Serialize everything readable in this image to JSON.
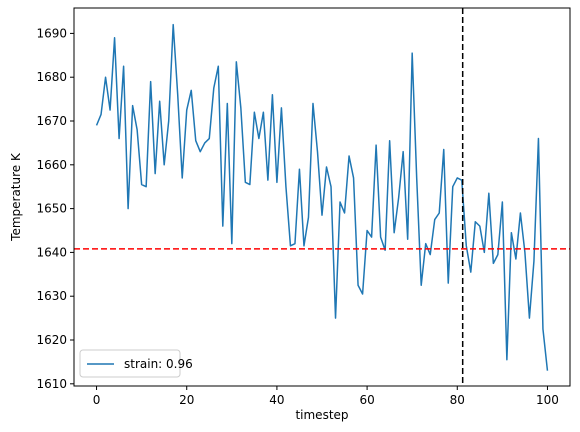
{
  "chart_data": {
    "type": "line",
    "title": "",
    "xlabel": "timestep",
    "ylabel": "Temperature K",
    "xlim": [
      -5,
      105
    ],
    "ylim": [
      1609.5,
      1695.8
    ],
    "xticks": [
      0,
      20,
      40,
      60,
      80,
      100
    ],
    "yticks": [
      1610,
      1620,
      1630,
      1640,
      1650,
      1660,
      1670,
      1680,
      1690
    ],
    "grid": false,
    "legend_placement": "lower-left",
    "series": [
      {
        "name": "strain: 0.96",
        "color": "#1f77b4",
        "x": [
          0,
          1,
          2,
          3,
          4,
          5,
          6,
          7,
          8,
          9,
          10,
          11,
          12,
          13,
          14,
          15,
          16,
          17,
          18,
          19,
          20,
          21,
          22,
          23,
          24,
          25,
          26,
          27,
          28,
          29,
          30,
          31,
          32,
          33,
          34,
          35,
          36,
          37,
          38,
          39,
          40,
          41,
          42,
          43,
          44,
          45,
          46,
          47,
          48,
          49,
          50,
          51,
          52,
          53,
          54,
          55,
          56,
          57,
          58,
          59,
          60,
          61,
          62,
          63,
          64,
          65,
          66,
          67,
          68,
          69,
          70,
          71,
          72,
          73,
          74,
          75,
          76,
          77,
          78,
          79,
          80,
          81,
          82,
          83,
          84,
          85,
          86,
          87,
          88,
          89,
          90,
          91,
          92,
          93,
          94,
          95,
          96,
          97,
          98,
          99,
          100
        ],
        "values": [
          1669,
          1671.5,
          1680,
          1672.5,
          1689,
          1666,
          1682.5,
          1650,
          1673.5,
          1668,
          1655.5,
          1655,
          1679,
          1658,
          1674.5,
          1660,
          1670,
          1692,
          1676,
          1657,
          1672.5,
          1677,
          1665.5,
          1663,
          1665,
          1666,
          1677.5,
          1682.5,
          1646,
          1674,
          1642,
          1683.5,
          1673,
          1656,
          1655.5,
          1672,
          1666,
          1672,
          1656.5,
          1676,
          1656,
          1673,
          1655,
          1641.5,
          1642,
          1659,
          1641.5,
          1648,
          1674,
          1663,
          1648.5,
          1659.5,
          1655,
          1625,
          1651.5,
          1649,
          1662,
          1657,
          1632.5,
          1630.5,
          1645,
          1643.5,
          1664.5,
          1643.5,
          1640.5,
          1665.5,
          1644.5,
          1652.5,
          1663,
          1643,
          1685.5,
          1657,
          1632.5,
          1642,
          1639.5,
          1647.5,
          1649,
          1663.5,
          1633,
          1655,
          1657,
          1656.5,
          1641.5,
          1635.5,
          1647,
          1646,
          1640,
          1653.5,
          1637.5,
          1639.5,
          1651.5,
          1615.5,
          1644.5,
          1638.5,
          1649,
          1640,
          1625,
          1638,
          1666,
          1622.5,
          1613
        ]
      }
    ],
    "reference_lines": [
      {
        "orientation": "horizontal",
        "value": 1640.8,
        "color": "#ff0000",
        "style": "dashed"
      },
      {
        "orientation": "vertical",
        "value": 81.2,
        "color": "#000000",
        "style": "dashed"
      }
    ]
  }
}
